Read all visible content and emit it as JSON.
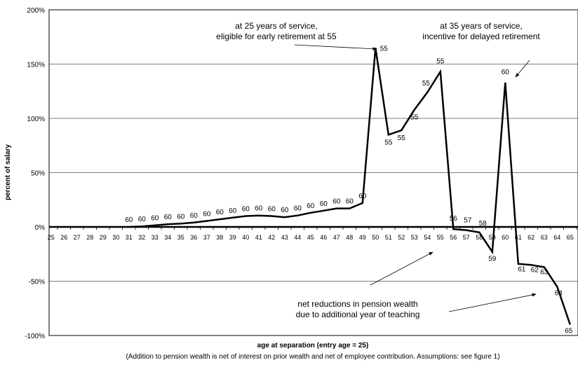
{
  "chart_data": {
    "type": "line",
    "title": "",
    "xlabel": "age at separation (entry age = 25)",
    "ylabel": "percent of salary",
    "ylim": [
      -100,
      200
    ],
    "yticks": [
      -100,
      -50,
      0,
      50,
      100,
      150,
      200
    ],
    "ytick_labels": [
      "-100%",
      "-50%",
      "0%",
      "50%",
      "100%",
      "150%",
      "200%"
    ],
    "grid": "horizontal",
    "categories": [
      "25",
      "26",
      "27",
      "28",
      "29",
      "30",
      "31",
      "32",
      "33",
      "34",
      "35",
      "36",
      "37",
      "38",
      "39",
      "40",
      "41",
      "42",
      "43",
      "44",
      "45",
      "46",
      "47",
      "48",
      "49",
      "50",
      "51",
      "52",
      "53",
      "54",
      "55",
      "56",
      "57",
      "58",
      "59",
      "60",
      "61",
      "62",
      "63",
      "64",
      "65"
    ],
    "values": [
      0,
      0,
      0,
      0,
      0,
      0,
      0,
      0.5,
      1.5,
      2.5,
      3,
      4,
      5.5,
      7,
      8.5,
      10,
      10.5,
      10,
      9,
      10.5,
      13,
      15,
      17,
      17,
      22,
      165,
      85,
      89,
      108,
      124,
      143,
      -2,
      -3,
      -5,
      -23,
      133,
      -34,
      -35,
      -37,
      -55,
      -90
    ],
    "point_labels": [
      "",
      "",
      "",
      "",
      "",
      "",
      "60",
      "60",
      "60",
      "60",
      "60",
      "60",
      "60",
      "60",
      "60",
      "60",
      "60",
      "60",
      "60",
      "60",
      "60",
      "60",
      "60",
      "60",
      "60",
      "55",
      "55",
      "55",
      "55",
      "55",
      "55",
      "56",
      "57",
      "58",
      "59",
      "60",
      "61",
      "62",
      "63",
      "64",
      "65"
    ],
    "annotations": [
      {
        "lines": [
          "at 25 years of service,",
          "eligible for early retirement at 55"
        ]
      },
      {
        "lines": [
          "at 35 years of service,",
          "incentive for delayed retirement"
        ]
      },
      {
        "lines": [
          "net reductions in pension wealth",
          "due to additional year of teaching"
        ]
      }
    ],
    "footnote": "(Addition to pension wealth is net of interest on prior wealth and net of employee contribution.  Assumptions:  see figure 1)"
  }
}
